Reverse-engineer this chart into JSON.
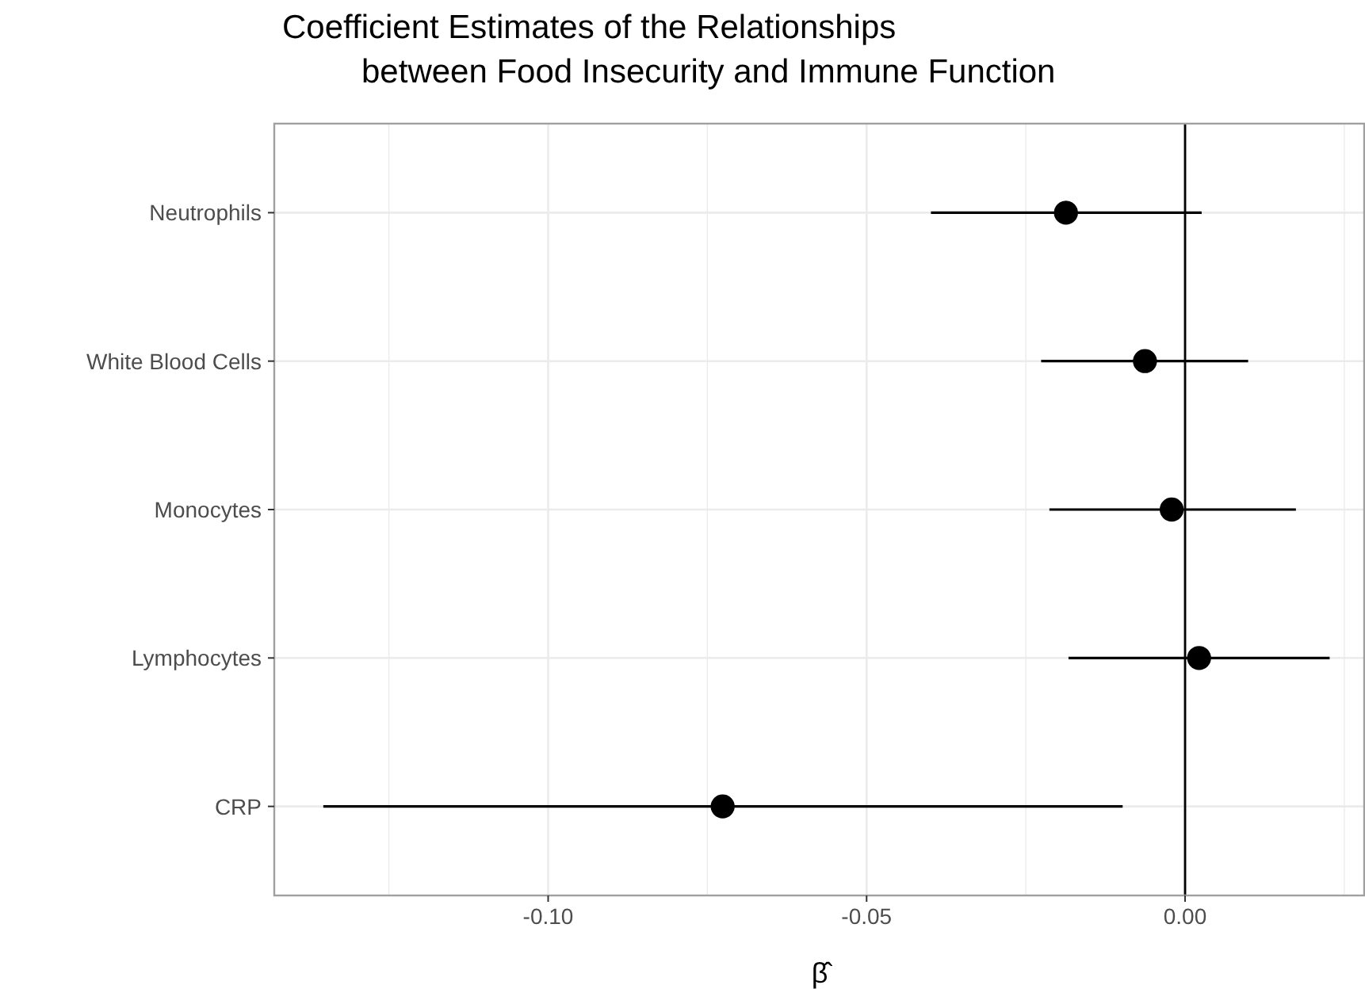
{
  "chart_data": {
    "type": "scatter",
    "orientation": "horizontal",
    "title": "Coefficient Estimates of the Relationships\nbetween Food Insecurity and Immune Function",
    "xlabel": "β̂",
    "categories": [
      "Neutrophils",
      "White Blood Cells",
      "Monocytes",
      "Lymphocytes",
      "CRP"
    ],
    "series": [
      {
        "color": "#000000",
        "values": [
          -0.0187,
          -0.0063,
          -0.0021,
          0.0022,
          -0.0726
        ],
        "errors": [
          [
            -0.0399,
            0.0026
          ],
          [
            -0.0226,
            0.0099
          ],
          [
            -0.0213,
            0.0174
          ],
          [
            -0.0183,
            0.0227
          ],
          [
            -0.1353,
            -0.0098
          ]
        ]
      }
    ],
    "xlim": [
      -0.143,
      0.028
    ],
    "xticks": [
      {
        "value": -0.125,
        "label": null
      },
      {
        "value": -0.1,
        "label": "-0.10"
      },
      {
        "value": -0.075,
        "label": null
      },
      {
        "value": -0.05,
        "label": "-0.05"
      },
      {
        "value": -0.025,
        "label": null
      },
      {
        "value": 0,
        "label": "0.00"
      },
      {
        "value": 0.025,
        "label": null
      }
    ],
    "ref_lines": [
      {
        "axis": "x",
        "value": 0,
        "color": "#000000"
      }
    ],
    "grid": true,
    "marker": "circle"
  }
}
